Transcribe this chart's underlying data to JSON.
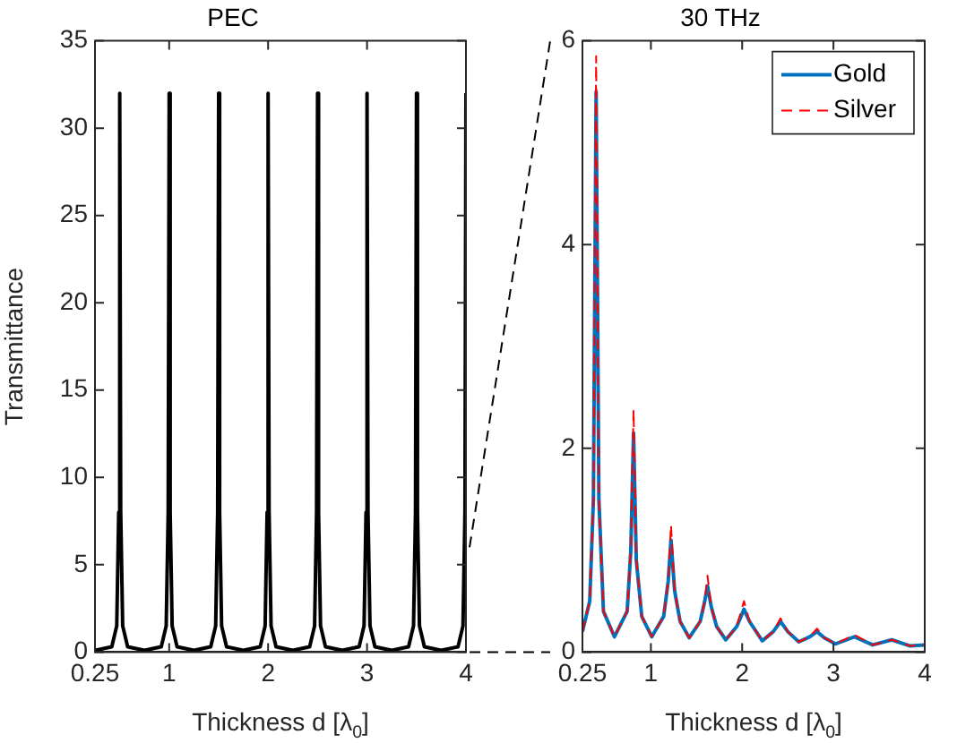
{
  "chart_data": [
    {
      "type": "line",
      "title": "PEC",
      "xlabel": "Thickness d [λ$_{0}$]",
      "ylabel": "Transmittance",
      "xlim": [
        0.25,
        4
      ],
      "xticks": [
        0.25,
        1,
        2,
        3,
        4
      ],
      "ylim": [
        0,
        35
      ],
      "yticks": [
        0,
        5,
        10,
        15,
        20,
        25,
        30,
        35
      ],
      "grid": false,
      "legend": false,
      "x": [
        0.25,
        0.42,
        0.47,
        0.49,
        0.5,
        0.51,
        0.53,
        0.58,
        0.75,
        0.92,
        0.97,
        0.99,
        1,
        1.01,
        1.03,
        1.08,
        1.25,
        1.42,
        1.47,
        1.49,
        1.5,
        1.51,
        1.53,
        1.58,
        1.75,
        1.92,
        1.97,
        1.99,
        2,
        2.01,
        2.03,
        2.08,
        2.25,
        2.42,
        2.47,
        2.49,
        2.5,
        2.51,
        2.53,
        2.58,
        2.75,
        2.92,
        2.97,
        2.99,
        3,
        3.01,
        3.03,
        3.08,
        3.25,
        3.42,
        3.47,
        3.49,
        3.5,
        3.51,
        3.53,
        3.58,
        3.75,
        3.92,
        3.97,
        3.99,
        4
      ],
      "series": [
        {
          "color": "#000000",
          "values": [
            0.1,
            0.3,
            1.5,
            8,
            32,
            8,
            1.5,
            0.3,
            0.1,
            0.3,
            1.5,
            8,
            32,
            8,
            1.5,
            0.3,
            0.1,
            0.3,
            1.5,
            8,
            32,
            8,
            1.5,
            0.3,
            0.1,
            0.3,
            1.5,
            8,
            32,
            8,
            1.5,
            0.3,
            0.1,
            0.3,
            1.5,
            8,
            32,
            8,
            1.5,
            0.3,
            0.1,
            0.3,
            1.5,
            8,
            32,
            8,
            1.5,
            0.3,
            0.1,
            0.3,
            1.5,
            8,
            32,
            8,
            1.5,
            0.3,
            0.1,
            0.3,
            1.5,
            8,
            32
          ]
        }
      ]
    },
    {
      "type": "line",
      "title": "30 THz",
      "xlabel": "Thickness d [λ$_{0}$]",
      "xlim": [
        0.25,
        4
      ],
      "xticks": [
        0.25,
        1,
        2,
        3,
        4
      ],
      "ylim": [
        0,
        6
      ],
      "yticks": [
        0,
        2,
        4,
        6
      ],
      "grid": false,
      "legend": "top right",
      "x": [
        0.25,
        0.33,
        0.37,
        0.4,
        0.43,
        0.48,
        0.6,
        0.74,
        0.78,
        0.81,
        0.84,
        0.9,
        1.01,
        1.14,
        1.19,
        1.22,
        1.26,
        1.32,
        1.42,
        1.54,
        1.59,
        1.62,
        1.66,
        1.72,
        1.82,
        1.94,
        2.02,
        2.08,
        2.22,
        2.34,
        2.42,
        2.5,
        2.62,
        2.74,
        2.82,
        2.9,
        3.02,
        3.23,
        3.43,
        3.64,
        3.84,
        4
      ],
      "series": [
        {
          "name": "Gold",
          "color": "#0072bd",
          "line_style": "solid",
          "values": [
            0.2,
            0.5,
            1.5,
            5.5,
            1.5,
            0.4,
            0.15,
            0.4,
            1.0,
            2.15,
            0.9,
            0.35,
            0.15,
            0.35,
            0.7,
            1.1,
            0.6,
            0.3,
            0.14,
            0.3,
            0.5,
            0.65,
            0.45,
            0.25,
            0.12,
            0.25,
            0.42,
            0.3,
            0.11,
            0.2,
            0.3,
            0.2,
            0.1,
            0.15,
            0.2,
            0.14,
            0.08,
            0.15,
            0.07,
            0.12,
            0.06,
            0.07
          ]
        },
        {
          "name": "Silver",
          "color": "#ff0000",
          "line_style": "dashed",
          "values": [
            0.2,
            0.5,
            1.5,
            5.85,
            1.5,
            0.4,
            0.15,
            0.4,
            1.0,
            2.38,
            0.9,
            0.35,
            0.15,
            0.35,
            0.7,
            1.25,
            0.6,
            0.3,
            0.14,
            0.3,
            0.5,
            0.75,
            0.45,
            0.25,
            0.12,
            0.25,
            0.5,
            0.3,
            0.11,
            0.2,
            0.33,
            0.2,
            0.1,
            0.15,
            0.23,
            0.14,
            0.08,
            0.17,
            0.07,
            0.12,
            0.06,
            0.07
          ]
        }
      ]
    }
  ]
}
